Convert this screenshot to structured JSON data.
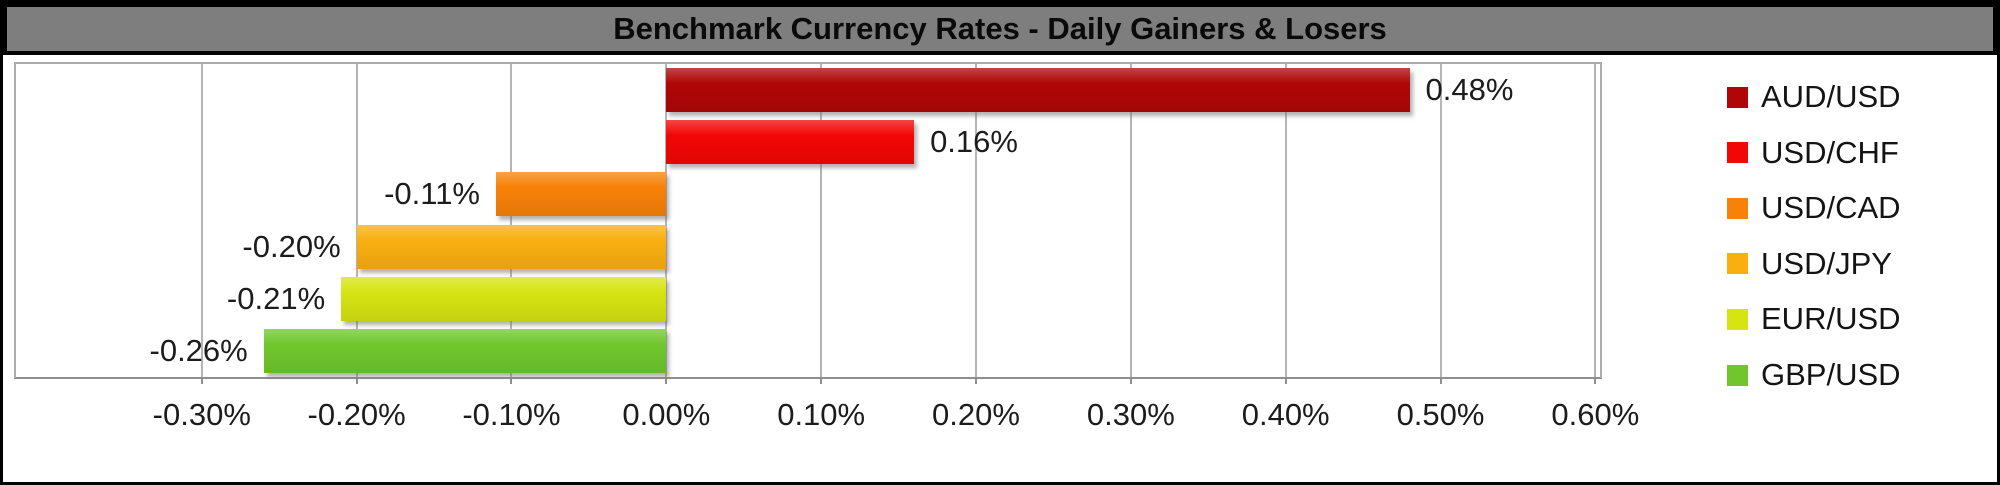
{
  "title": "Benchmark Currency Rates - Daily Gainers & Losers",
  "theme": {
    "outer_border": "#000000",
    "title_bg": "#7E7E7E",
    "title_text": "#0A0A0A",
    "background": "#FFFFFF",
    "grid_color": "#B5B5B5",
    "axis_color": "#8E8E8E",
    "plot_border": "#ACACAC",
    "label_text": "#1C1C1C"
  },
  "chart_data": {
    "type": "bar",
    "orientation": "horizontal",
    "title": "Benchmark Currency Rates - Daily Gainers & Losers",
    "unit": "%",
    "grid": true,
    "legend_position": "right",
    "xlim": [
      -0.42,
      0.603
    ],
    "x_ticks": [
      {
        "value": -0.3,
        "label": "-0.30%"
      },
      {
        "value": -0.2,
        "label": "-0.20%"
      },
      {
        "value": -0.1,
        "label": "-0.10%"
      },
      {
        "value": 0.0,
        "label": "0.00%"
      },
      {
        "value": 0.1,
        "label": "0.10%"
      },
      {
        "value": 0.2,
        "label": "0.20%"
      },
      {
        "value": 0.3,
        "label": "0.30%"
      },
      {
        "value": 0.4,
        "label": "0.40%"
      },
      {
        "value": 0.5,
        "label": "0.50%"
      },
      {
        "value": 0.6,
        "label": "0.60%"
      }
    ],
    "series": [
      {
        "name": "AUD/USD",
        "value": 0.48,
        "label": "0.48%",
        "color": "#B00607"
      },
      {
        "name": "USD/CHF",
        "value": 0.16,
        "label": "0.16%",
        "color": "#F20705"
      },
      {
        "name": "USD/CAD",
        "value": -0.11,
        "label": "-0.11%",
        "color": "#F88108"
      },
      {
        "name": "USD/JPY",
        "value": -0.2,
        "label": "-0.20%",
        "color": "#FAAF10"
      },
      {
        "name": "EUR/USD",
        "value": -0.21,
        "label": "-0.21%",
        "color": "#D6E412"
      },
      {
        "name": "GBP/USD",
        "value": -0.26,
        "label": "-0.26%",
        "color": "#6FC72D"
      }
    ]
  }
}
